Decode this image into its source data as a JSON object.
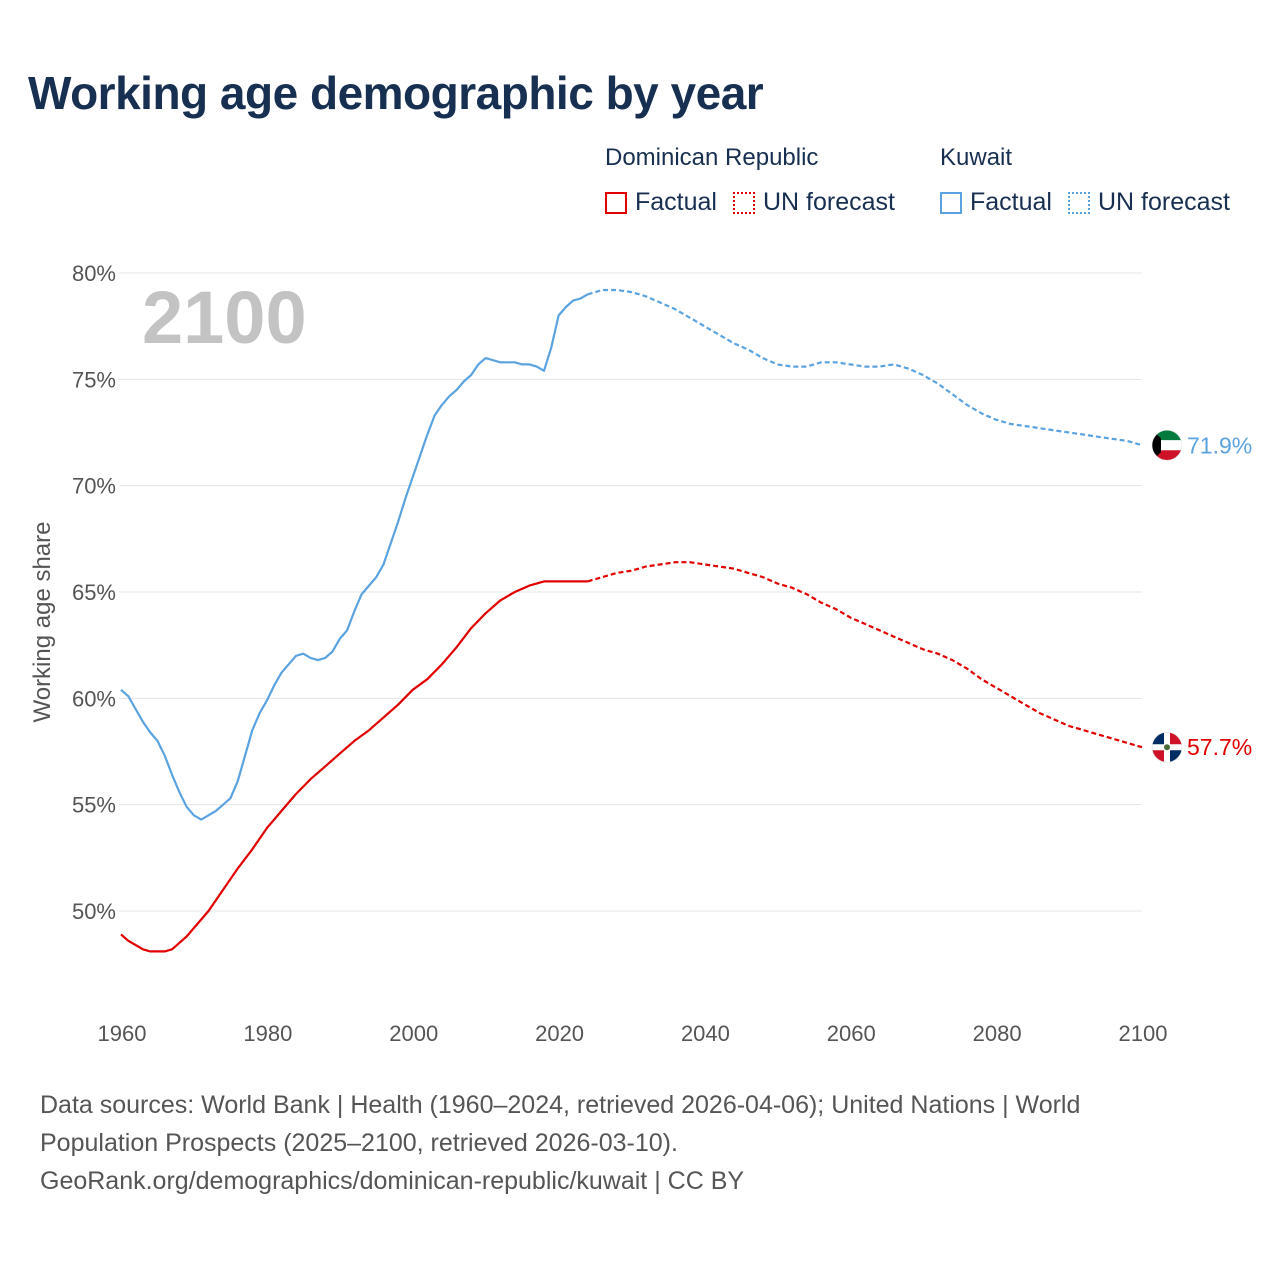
{
  "chart_data": {
    "type": "line",
    "title": "Working age demographic by year",
    "ylabel": "Working age share",
    "xlabel": "",
    "xlim": [
      1960,
      2100
    ],
    "ylim": [
      45,
      80
    ],
    "x_ticks": [
      1960,
      1980,
      2000,
      2020,
      2040,
      2060,
      2080,
      2100
    ],
    "y_ticks": [
      50,
      55,
      60,
      65,
      70,
      75,
      80
    ],
    "y_tick_labels": [
      "50%",
      "55%",
      "60%",
      "65%",
      "70%",
      "75%",
      "80%"
    ],
    "year_overlay": "2100",
    "factual_range": [
      1960,
      2024
    ],
    "forecast_range": [
      2024,
      2100
    ],
    "series": [
      {
        "name": "Dominican Republic",
        "color": "#e00000",
        "flag": "dominican-republic-flag",
        "end_label": "57.7%",
        "x": [
          1960,
          1961,
          1962,
          1963,
          1964,
          1965,
          1966,
          1967,
          1968,
          1969,
          1970,
          1972,
          1974,
          1976,
          1978,
          1980,
          1982,
          1984,
          1986,
          1988,
          1990,
          1992,
          1994,
          1996,
          1998,
          2000,
          2002,
          2004,
          2006,
          2008,
          2010,
          2012,
          2014,
          2016,
          2018,
          2020,
          2022,
          2024,
          2026,
          2028,
          2030,
          2032,
          2034,
          2036,
          2038,
          2040,
          2042,
          2044,
          2046,
          2048,
          2050,
          2052,
          2054,
          2056,
          2058,
          2060,
          2062,
          2064,
          2066,
          2068,
          2070,
          2072,
          2074,
          2076,
          2078,
          2080,
          2082,
          2084,
          2086,
          2088,
          2090,
          2092,
          2094,
          2096,
          2098,
          2100
        ],
        "values": [
          48.9,
          48.6,
          48.4,
          48.2,
          48.1,
          48.1,
          48.1,
          48.2,
          48.5,
          48.8,
          49.2,
          50.0,
          51.0,
          52.0,
          52.9,
          53.9,
          54.7,
          55.5,
          56.2,
          56.8,
          57.4,
          58.0,
          58.5,
          59.1,
          59.7,
          60.4,
          60.9,
          61.6,
          62.4,
          63.3,
          64.0,
          64.6,
          65.0,
          65.3,
          65.5,
          65.5,
          65.5,
          65.5,
          65.7,
          65.9,
          66.0,
          66.2,
          66.3,
          66.4,
          66.4,
          66.3,
          66.2,
          66.1,
          65.9,
          65.7,
          65.4,
          65.2,
          64.9,
          64.5,
          64.2,
          63.8,
          63.5,
          63.2,
          62.9,
          62.6,
          62.3,
          62.1,
          61.8,
          61.4,
          60.9,
          60.5,
          60.1,
          59.7,
          59.3,
          59.0,
          58.7,
          58.5,
          58.3,
          58.1,
          57.9,
          57.7
        ]
      },
      {
        "name": "Kuwait",
        "color": "#5ba3e0",
        "flag": "kuwait-flag",
        "end_label": "71.9%",
        "x": [
          1960,
          1961,
          1962,
          1963,
          1964,
          1965,
          1966,
          1967,
          1968,
          1969,
          1970,
          1971,
          1972,
          1973,
          1974,
          1975,
          1976,
          1977,
          1978,
          1979,
          1980,
          1981,
          1982,
          1983,
          1984,
          1985,
          1986,
          1987,
          1988,
          1989,
          1990,
          1991,
          1992,
          1993,
          1994,
          1995,
          1996,
          1997,
          1998,
          1999,
          2000,
          2001,
          2002,
          2003,
          2004,
          2005,
          2006,
          2007,
          2008,
          2009,
          2010,
          2011,
          2012,
          2013,
          2014,
          2015,
          2016,
          2017,
          2018,
          2019,
          2020,
          2021,
          2022,
          2023,
          2024,
          2026,
          2028,
          2030,
          2032,
          2034,
          2036,
          2038,
          2040,
          2042,
          2044,
          2046,
          2048,
          2050,
          2052,
          2054,
          2056,
          2058,
          2060,
          2062,
          2064,
          2066,
          2068,
          2070,
          2072,
          2074,
          2076,
          2078,
          2080,
          2082,
          2084,
          2086,
          2088,
          2090,
          2092,
          2094,
          2096,
          2098,
          2100
        ],
        "values": [
          60.4,
          60.1,
          59.5,
          58.9,
          58.4,
          58.0,
          57.3,
          56.4,
          55.6,
          54.9,
          54.5,
          54.3,
          54.5,
          54.7,
          55.0,
          55.3,
          56.1,
          57.3,
          58.5,
          59.3,
          59.9,
          60.6,
          61.2,
          61.6,
          62.0,
          62.1,
          61.9,
          61.8,
          61.9,
          62.2,
          62.8,
          63.2,
          64.1,
          64.9,
          65.3,
          65.7,
          66.3,
          67.3,
          68.3,
          69.4,
          70.4,
          71.4,
          72.4,
          73.3,
          73.8,
          74.2,
          74.5,
          74.9,
          75.2,
          75.7,
          76.0,
          75.9,
          75.8,
          75.8,
          75.8,
          75.7,
          75.7,
          75.6,
          75.4,
          76.5,
          78.0,
          78.4,
          78.7,
          78.8,
          79.0,
          79.2,
          79.2,
          79.1,
          78.9,
          78.6,
          78.3,
          77.9,
          77.5,
          77.1,
          76.7,
          76.4,
          76.0,
          75.7,
          75.6,
          75.6,
          75.8,
          75.8,
          75.7,
          75.6,
          75.6,
          75.7,
          75.5,
          75.2,
          74.8,
          74.3,
          73.8,
          73.4,
          73.1,
          72.9,
          72.8,
          72.7,
          72.6,
          72.5,
          72.4,
          72.3,
          72.2,
          72.1,
          71.9
        ]
      }
    ],
    "legend": [
      {
        "group": "Dominican Republic",
        "color": "#e00000",
        "factual": "Factual",
        "forecast": "UN forecast"
      },
      {
        "group": "Kuwait",
        "color": "#5ba3e0",
        "factual": "Factual",
        "forecast": "UN forecast"
      }
    ],
    "grid": true
  },
  "footer": {
    "line1": "Data sources: World Bank | Health (1960–2024, retrieved 2026-04-06); United Nations | World",
    "line2": "Population Prospects (2025–2100, retrieved 2026-03-10).",
    "line3": "GeoRank.org/demographics/dominican-republic/kuwait | CC BY"
  }
}
